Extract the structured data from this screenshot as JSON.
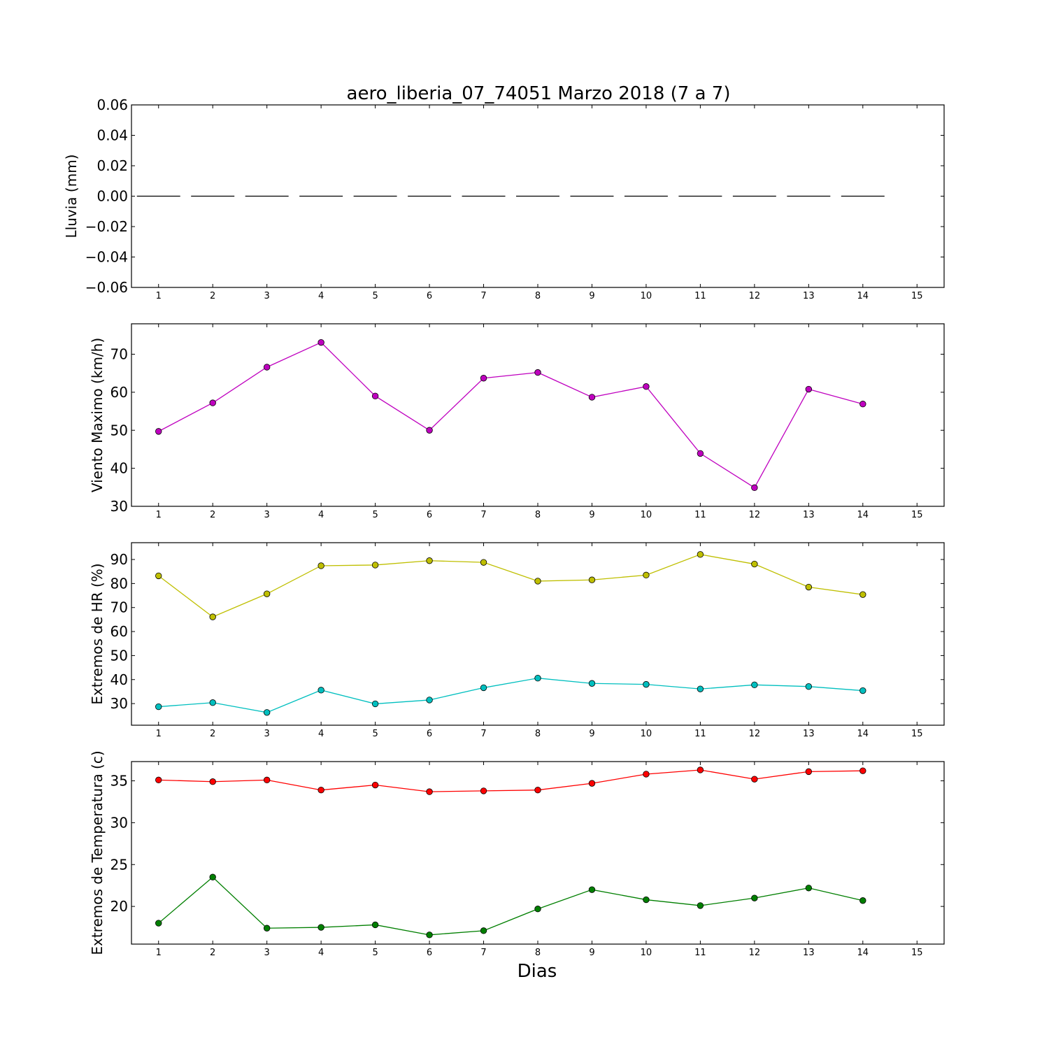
{
  "figure_title": "aero_liberia_07_74051 Marzo 2018  (7 a 7)",
  "xlabel": "Dias",
  "chart_data": [
    {
      "type": "bar",
      "ylabel": "Lluvia (mm)",
      "ylim": [
        -0.06,
        0.06
      ],
      "yticks": [
        0.06,
        0.04,
        0.02,
        0.0,
        -0.02,
        -0.04,
        -0.06
      ],
      "ytick_labels": [
        "0.06",
        "0.04",
        "0.02",
        "0.00",
        "−0.02",
        "−0.04",
        "−0.06"
      ],
      "xlim": [
        0.5,
        15.5
      ],
      "xticks": [
        1,
        2,
        3,
        4,
        5,
        6,
        7,
        8,
        9,
        10,
        11,
        12,
        13,
        14,
        15
      ],
      "xtick_labels": [
        "1",
        "2",
        "3",
        "4",
        "5",
        "6",
        "7",
        "8",
        "9",
        "10",
        "11",
        "12",
        "13",
        "14",
        "15"
      ],
      "bar_width": 0.8,
      "series": [
        {
          "color": "#000000",
          "x": [
            1,
            2,
            3,
            4,
            5,
            6,
            7,
            8,
            9,
            10,
            11,
            12,
            13,
            14
          ],
          "values": [
            0,
            0,
            0,
            0,
            0,
            0,
            0,
            0,
            0,
            0,
            0,
            0,
            0,
            0
          ]
        }
      ]
    },
    {
      "type": "line",
      "ylabel": "Viento Maximo (km/h)",
      "ylim": [
        30,
        78
      ],
      "yticks": [
        70,
        60,
        50,
        40,
        30
      ],
      "ytick_labels": [
        "70",
        "60",
        "50",
        "40",
        "30"
      ],
      "xlim": [
        0.5,
        15.5
      ],
      "xticks": [
        1,
        2,
        3,
        4,
        5,
        6,
        7,
        8,
        9,
        10,
        11,
        12,
        13,
        14,
        15
      ],
      "xtick_labels": [
        "1",
        "2",
        "3",
        "4",
        "5",
        "6",
        "7",
        "8",
        "9",
        "10",
        "11",
        "12",
        "13",
        "14",
        "15"
      ],
      "series": [
        {
          "color": "#bf00bf",
          "x": [
            1,
            2,
            3,
            4,
            5,
            6,
            7,
            8,
            9,
            10,
            11,
            12,
            13,
            14
          ],
          "values": [
            49.7,
            57.2,
            66.6,
            73.1,
            59.0,
            50.0,
            63.7,
            65.2,
            58.7,
            61.5,
            43.9,
            34.9,
            60.8,
            56.9
          ]
        }
      ]
    },
    {
      "type": "line",
      "ylabel": "Extremos de HR (%)",
      "ylim": [
        21,
        97
      ],
      "yticks": [
        90,
        80,
        70,
        60,
        50,
        40,
        30
      ],
      "ytick_labels": [
        "90",
        "80",
        "70",
        "60",
        "50",
        "40",
        "30"
      ],
      "xlim": [
        0.5,
        15.5
      ],
      "xticks": [
        1,
        2,
        3,
        4,
        5,
        6,
        7,
        8,
        9,
        10,
        11,
        12,
        13,
        14,
        15
      ],
      "xtick_labels": [
        "1",
        "2",
        "3",
        "4",
        "5",
        "6",
        "7",
        "8",
        "9",
        "10",
        "11",
        "12",
        "13",
        "14",
        "15"
      ],
      "series": [
        {
          "color": "#bfbf00",
          "x": [
            1,
            2,
            3,
            4,
            5,
            6,
            7,
            8,
            9,
            10,
            11,
            12,
            13,
            14
          ],
          "values": [
            83.2,
            66.1,
            75.7,
            87.4,
            87.7,
            89.5,
            88.8,
            81.0,
            81.5,
            83.5,
            92.1,
            88.1,
            78.5,
            75.4
          ]
        },
        {
          "color": "#00bfbf",
          "x": [
            1,
            2,
            3,
            4,
            5,
            6,
            7,
            8,
            9,
            10,
            11,
            12,
            13,
            14
          ],
          "values": [
            28.7,
            30.4,
            26.3,
            35.6,
            29.9,
            31.5,
            36.6,
            40.6,
            38.4,
            38.0,
            36.1,
            37.8,
            37.1,
            35.4
          ]
        }
      ]
    },
    {
      "type": "line",
      "ylabel": "Extremos de Temperatura (c)",
      "ylim": [
        15.5,
        37.3
      ],
      "yticks": [
        35,
        30,
        25,
        20
      ],
      "ytick_labels": [
        "35",
        "30",
        "25",
        "20"
      ],
      "xlim": [
        0.5,
        15.5
      ],
      "xticks": [
        1,
        2,
        3,
        4,
        5,
        6,
        7,
        8,
        9,
        10,
        11,
        12,
        13,
        14,
        15
      ],
      "xtick_labels": [
        "1",
        "2",
        "3",
        "4",
        "5",
        "6",
        "7",
        "8",
        "9",
        "10",
        "11",
        "12",
        "13",
        "14",
        "15"
      ],
      "series": [
        {
          "color": "#ff0000",
          "x": [
            1,
            2,
            3,
            4,
            5,
            6,
            7,
            8,
            9,
            10,
            11,
            12,
            13,
            14
          ],
          "values": [
            35.1,
            34.9,
            35.1,
            33.9,
            34.5,
            33.7,
            33.8,
            33.9,
            34.7,
            35.8,
            36.3,
            35.2,
            36.1,
            36.2
          ]
        },
        {
          "color": "#007f00",
          "x": [
            1,
            2,
            3,
            4,
            5,
            6,
            7,
            8,
            9,
            10,
            11,
            12,
            13,
            14
          ],
          "values": [
            18.0,
            23.5,
            17.4,
            17.5,
            17.8,
            16.6,
            17.1,
            19.7,
            22.0,
            20.8,
            20.1,
            21.0,
            22.2,
            20.7
          ]
        }
      ]
    }
  ]
}
